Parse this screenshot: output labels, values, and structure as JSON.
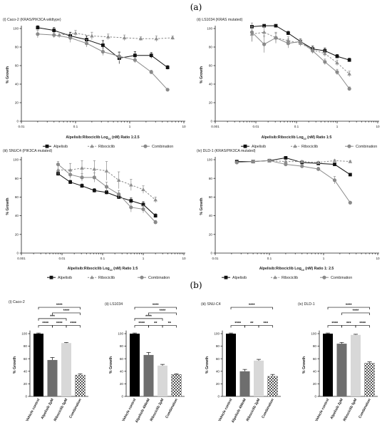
{
  "panel_labels": {
    "a": "(a)",
    "b": "(b)"
  },
  "legend": {
    "alpelisib": "Alpelisib",
    "ribociclib": "Ribociclib",
    "combination": "Combination"
  },
  "chart_data": [
    {
      "type": "line",
      "title": "(i) Caco-2 (KRAS/PIK3CA wildtype)",
      "xlabel": "Alpelisib:Ribociclib Log10 (nM) Ratio 1:2.5",
      "ylabel": "% Growth",
      "x_scale": "log",
      "xlim": [
        0.01,
        10
      ],
      "ylim": [
        0,
        100
      ],
      "x_ticks": [
        "0.01",
        "0.1",
        "1",
        "10"
      ],
      "y_ticks": [
        "0",
        "20",
        "40",
        "60",
        "80",
        "100"
      ],
      "series": [
        {
          "name": "Alpelisib",
          "x": [
            0.02,
            0.04,
            0.08,
            0.16,
            0.32,
            0.64,
            1.25,
            2.5,
            5
          ],
          "y": [
            101,
            98,
            92,
            88,
            82,
            68,
            71,
            71,
            58
          ],
          "err": [
            2,
            3,
            4,
            4,
            5,
            6,
            4,
            3,
            2
          ]
        },
        {
          "name": "Ribociclib",
          "x": [
            0.05,
            0.1,
            0.2,
            0.4,
            0.8,
            1.6,
            3.1,
            6.2,
            12.5
          ],
          "y": [
            93,
            95,
            92,
            91,
            90,
            89,
            89,
            90,
            85
          ],
          "err": [
            3,
            3,
            4,
            3,
            3,
            2,
            3,
            2,
            1
          ]
        },
        {
          "name": "Combination",
          "x": [
            0.02,
            0.04,
            0.08,
            0.16,
            0.32,
            0.64,
            1.25,
            2.5,
            5
          ],
          "y": [
            94,
            93,
            90,
            84,
            75,
            70,
            66,
            53,
            34
          ],
          "err": [
            4,
            3,
            5,
            4,
            4,
            5,
            3,
            2,
            1
          ]
        }
      ]
    },
    {
      "type": "line",
      "title": "(ii) LS1034 (KRAS mutated)",
      "xlabel": "Alpelisib:Ribociclib Log10 (nM) Ratio 1:5",
      "ylabel": "% Growth",
      "x_scale": "log",
      "xlim": [
        0.001,
        10
      ],
      "ylim": [
        0,
        100
      ],
      "x_ticks": [
        "0.001",
        "0.01",
        "0.1",
        "1",
        "10"
      ],
      "y_ticks": [
        "0",
        "20",
        "40",
        "60",
        "80",
        "100"
      ],
      "series": [
        {
          "name": "Alpelisib",
          "x": [
            0.008,
            0.016,
            0.031,
            0.0625,
            0.125,
            0.25,
            0.5,
            1,
            2
          ],
          "y": [
            102,
            103,
            103,
            95,
            86,
            78,
            76,
            70,
            66
          ],
          "err": [
            1,
            1,
            1,
            2,
            3,
            3,
            3,
            2,
            2
          ]
        },
        {
          "name": "Ribociclib",
          "x": [
            0.008,
            0.016,
            0.031,
            0.0625,
            0.125,
            0.25,
            0.5,
            1,
            2
          ],
          "y": [
            94,
            96,
            90,
            87,
            84,
            77,
            73,
            63,
            51
          ],
          "err": [
            8,
            6,
            5,
            4,
            3,
            3,
            3,
            3,
            3
          ]
        },
        {
          "name": "Combination",
          "x": [
            0.008,
            0.016,
            0.031,
            0.0625,
            0.125,
            0.25,
            0.5,
            1,
            2
          ],
          "y": [
            96,
            83,
            90,
            84,
            86,
            76,
            64,
            53,
            35
          ],
          "err": [
            10,
            9,
            6,
            5,
            3,
            3,
            3,
            3,
            2
          ]
        }
      ]
    },
    {
      "type": "line",
      "title": "(iii) SNUC4 (PIK3CA mutated)",
      "xlabel": "Alpelisib:Ribociclib Log10 (nM) Ratio 1:5",
      "ylabel": "% Growth",
      "x_scale": "log",
      "xlim": [
        0.001,
        10
      ],
      "ylim": [
        0,
        100
      ],
      "x_ticks": [
        "0.001",
        "0.01",
        "0.1",
        "1",
        "10"
      ],
      "y_ticks": [
        "0",
        "20",
        "40",
        "60",
        "80",
        "100"
      ],
      "series": [
        {
          "name": "Alpelisib",
          "x": [
            0.008,
            0.016,
            0.031,
            0.0625,
            0.125,
            0.25,
            0.5,
            1,
            2
          ],
          "y": [
            85,
            76,
            72,
            67,
            65,
            60,
            56,
            52,
            40
          ],
          "err": [
            2,
            2,
            2,
            2,
            2,
            2,
            3,
            3,
            2
          ]
        },
        {
          "name": "Ribociclib",
          "x": [
            0.008,
            0.016,
            0.031,
            0.0625,
            0.125,
            0.25,
            0.5,
            1,
            2
          ],
          "y": [
            89,
            89,
            91,
            90,
            88,
            78,
            73,
            68,
            57
          ],
          "err": [
            5,
            7,
            8,
            9,
            10,
            9,
            6,
            4,
            3
          ]
        },
        {
          "name": "Combination",
          "x": [
            0.008,
            0.016,
            0.031,
            0.0625,
            0.125,
            0.25,
            0.5,
            1,
            2
          ],
          "y": [
            95,
            84,
            81,
            81,
            71,
            63,
            49,
            47,
            33
          ],
          "err": [
            3,
            4,
            4,
            5,
            5,
            4,
            5,
            4,
            2
          ]
        }
      ]
    },
    {
      "type": "line",
      "title": "(iv) DLD-1 (KRAS/PIK3CA mutated)",
      "xlabel": "Alpelisib:Ribociclib Log10 (nM) Ratio 1: 2.5",
      "ylabel": "% Growth",
      "x_scale": "log",
      "xlim": [
        0.01,
        10
      ],
      "ylim": [
        0,
        100
      ],
      "x_ticks": [
        "0.01",
        "0.1",
        "1",
        "10"
      ],
      "y_ticks": [
        "0",
        "20",
        "40",
        "60",
        "80",
        "100"
      ],
      "series": [
        {
          "name": "Alpelisib",
          "x": [
            0.025,
            0.05,
            0.1,
            0.2,
            0.4,
            0.8,
            1.6,
            3.1
          ],
          "y": [
            98,
            98,
            99,
            102,
            97,
            96,
            95,
            84
          ],
          "err": [
            1,
            1,
            1,
            1,
            1,
            1,
            1,
            1
          ]
        },
        {
          "name": "Ribociclib",
          "x": [
            0.1,
            0.2,
            0.4,
            0.8,
            1.6,
            3.1
          ],
          "y": [
            99,
            98,
            98,
            97,
            99,
            98
          ],
          "err": [
            1,
            1,
            1,
            1,
            1,
            1
          ]
        },
        {
          "name": "Combination",
          "x": [
            0.025,
            0.05,
            0.1,
            0.2,
            0.4,
            0.8,
            1.6,
            3.1
          ],
          "y": [
            97,
            98,
            99,
            95,
            93,
            90,
            78,
            54
          ],
          "err": [
            1,
            1,
            1,
            1,
            1,
            2,
            4,
            1
          ]
        }
      ]
    },
    {
      "type": "bar",
      "title": "(i) Caco-2",
      "ylabel": "% Growth",
      "ylim": [
        0,
        150
      ],
      "y_ticks": [
        "0",
        "20",
        "40",
        "60",
        "80",
        "100"
      ],
      "categories": [
        "Vehicle control",
        "Alpelisib 2µM",
        "Ribociclib 5µM",
        "Combination"
      ],
      "values": [
        100,
        58,
        85,
        34
      ],
      "err": [
        1,
        4,
        1,
        2
      ],
      "significance": [
        {
          "from": 0,
          "to": 3,
          "label": "****"
        },
        {
          "from": 1,
          "to": 3,
          "label": "****"
        },
        {
          "from": 0,
          "to": 2,
          "label": "***"
        },
        {
          "from": 0,
          "to": 1,
          "label": "****"
        },
        {
          "from": 1,
          "to": 2,
          "label": "****"
        },
        {
          "from": 2,
          "to": 3,
          "label": "****"
        }
      ]
    },
    {
      "type": "bar",
      "title": "(ii) LS1034",
      "ylabel": "% Growth",
      "ylim": [
        0,
        150
      ],
      "y_ticks": [
        "0",
        "20",
        "40",
        "60",
        "80",
        "100"
      ],
      "categories": [
        "Vehicle control",
        "Alpelisib 400nM",
        "Ribociclib 2µM",
        "Combination"
      ],
      "values": [
        100,
        66,
        49,
        35
      ],
      "err": [
        1,
        4,
        2,
        1
      ],
      "significance": [
        {
          "from": 0,
          "to": 3,
          "label": "****"
        },
        {
          "from": 1,
          "to": 3,
          "label": "****"
        },
        {
          "from": 0,
          "to": 2,
          "label": "****"
        },
        {
          "from": 0,
          "to": 1,
          "label": "****"
        },
        {
          "from": 1,
          "to": 2,
          "label": "**"
        },
        {
          "from": 2,
          "to": 3,
          "label": "**"
        }
      ]
    },
    {
      "type": "bar",
      "title": "(iii) SNU-C4",
      "ylabel": "% Growth",
      "ylim": [
        0,
        150
      ],
      "y_ticks": [
        "0",
        "20",
        "40",
        "60",
        "80",
        "100"
      ],
      "categories": [
        "Vehicle control",
        "Alpelisib 400nM",
        "Ribociclib 2µM",
        "Combination"
      ],
      "values": [
        100,
        40,
        57,
        32
      ],
      "err": [
        1,
        3,
        2,
        3
      ],
      "significance": [
        {
          "from": 0,
          "to": 3,
          "label": "****"
        },
        {
          "from": 0,
          "to": 1,
          "label": "****"
        },
        {
          "from": 1,
          "to": 2,
          "label": "**"
        },
        {
          "from": 2,
          "to": 3,
          "label": "***"
        }
      ]
    },
    {
      "type": "bar",
      "title": "(iv) DLD-1",
      "ylabel": "% Growth",
      "ylim": [
        0,
        150
      ],
      "y_ticks": [
        "0",
        "20",
        "40",
        "60",
        "80",
        "100"
      ],
      "categories": [
        "Vehicle control",
        "Alpelisib 2µM",
        "Ribociclib 5µM",
        "Combination"
      ],
      "values": [
        100,
        84,
        98,
        53
      ],
      "err": [
        1,
        2,
        1,
        2
      ],
      "significance": [
        {
          "from": 0,
          "to": 3,
          "label": "****"
        },
        {
          "from": 1,
          "to": 3,
          "label": "****"
        },
        {
          "from": 0,
          "to": 1,
          "label": "****"
        },
        {
          "from": 1,
          "to": 2,
          "label": "***"
        },
        {
          "from": 2,
          "to": 3,
          "label": "****"
        }
      ]
    }
  ]
}
